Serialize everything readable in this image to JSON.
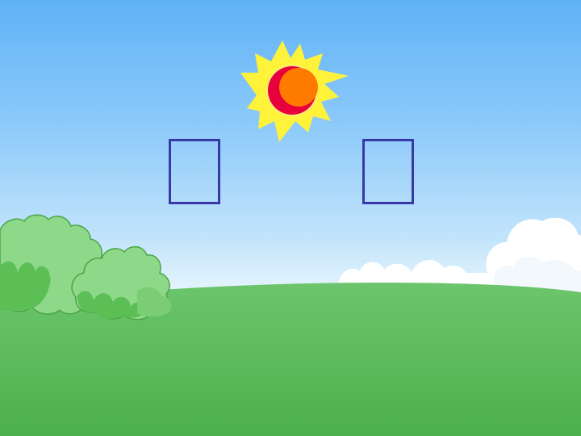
{
  "scene": {
    "elements": [
      "sun-icon",
      "cloud-icon",
      "bush-icon",
      "grass-hill"
    ],
    "colors": {
      "sky_top": "#5fb2f7",
      "sky_bottom": "#e8f6fd",
      "grass_light": "#6cc56c",
      "grass_dark": "#4cb04a",
      "sun_rays": "#fff23a",
      "sun_body": "#ff7b00",
      "sun_shadow": "#e8003c",
      "bush_light": "#8ed88a",
      "bush_dark": "#5bbf55",
      "box_border": "#3838a8"
    }
  },
  "answer_boxes": [
    {
      "name": "left",
      "value": ""
    },
    {
      "name": "right",
      "value": ""
    }
  ]
}
